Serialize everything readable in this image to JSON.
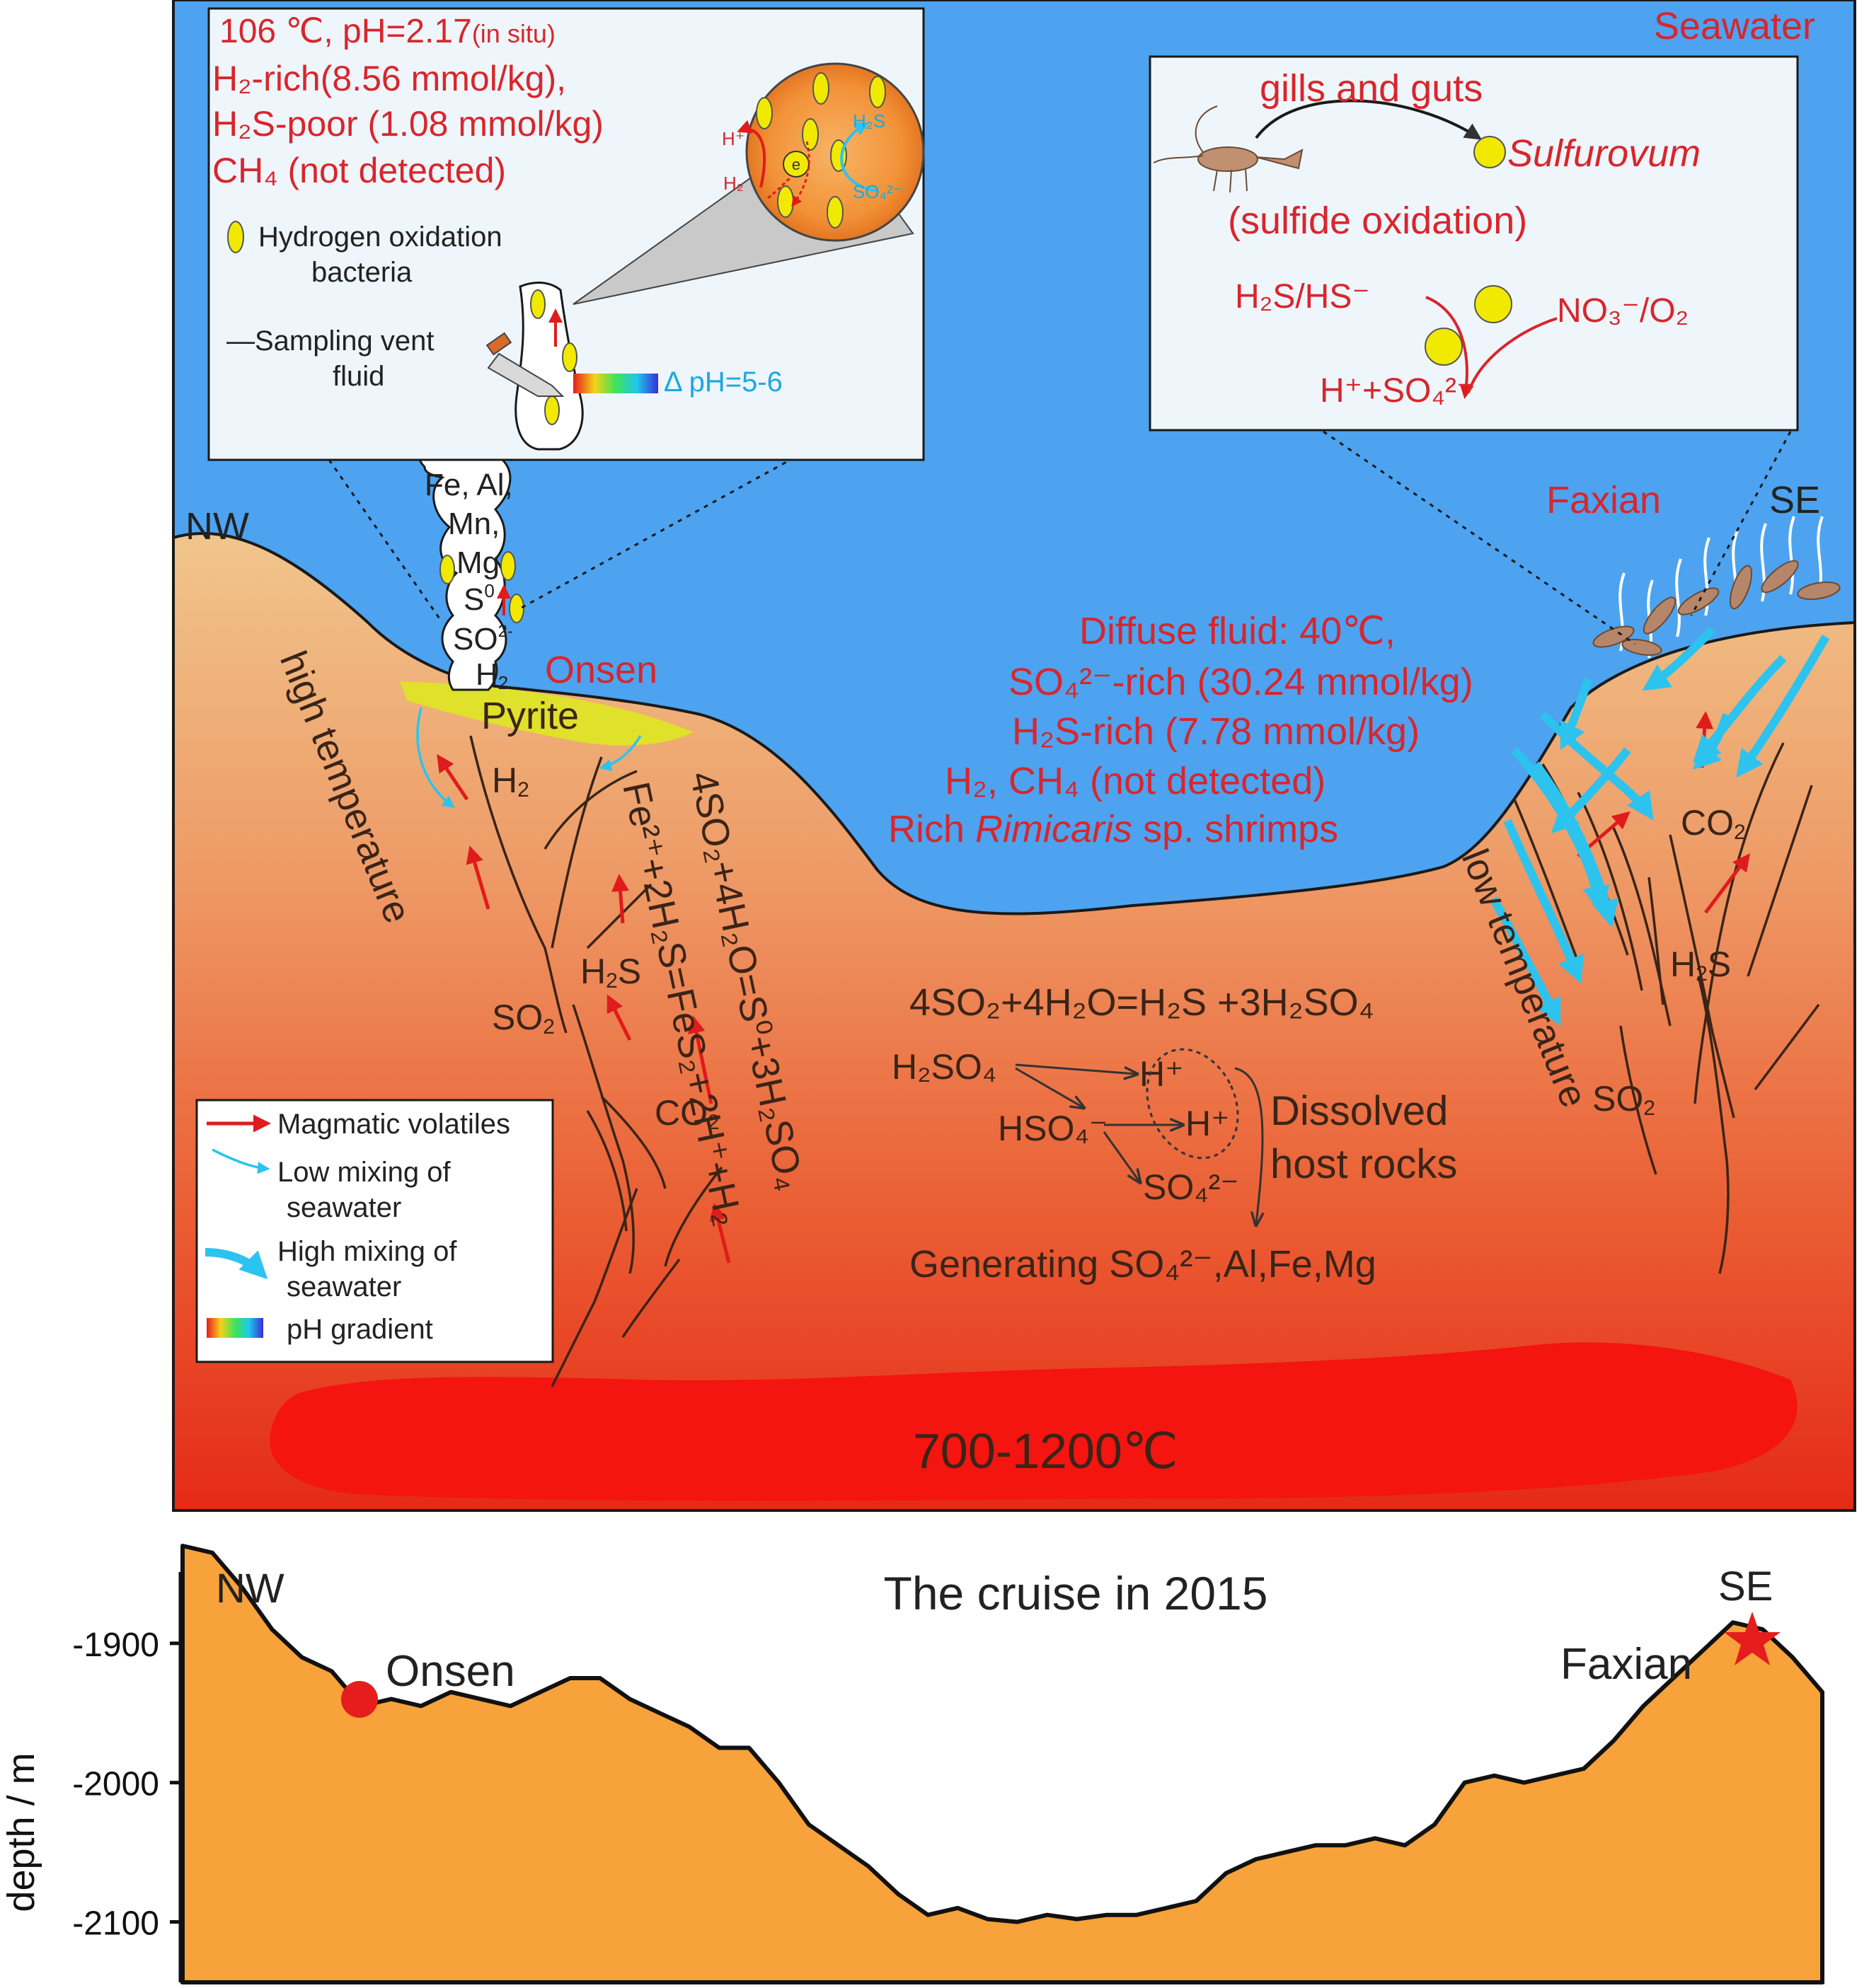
{
  "colors": {
    "seawater": "#4da3ef",
    "crust_top": "#f0c188",
    "crust_bottom": "#e8321e",
    "magma": "#f21616",
    "pyrite": "#dfe12a",
    "red_text": "#d8262c",
    "cyan_text": "#1ba9e0",
    "arrow_red": "#e01b1b",
    "arrow_cyan": "#2cc3ef",
    "bacteria": "#f1ea00",
    "profile_fill": "#f7a23a",
    "box_bg": "#eef6fc"
  },
  "labels": {
    "seawater": "Seawater",
    "nw": "NW",
    "se": "SE",
    "faxian": "Faxian",
    "onsen": "Onsen",
    "pyrite": "Pyrite",
    "high_temp": "high temperature",
    "low_temp": "low temperature",
    "magma": "700-1200℃",
    "chimney": [
      "Fe, Al,",
      "Mn,",
      "Mg",
      "S",
      "SO",
      "H"
    ],
    "chimney_sup": [
      "0",
      "2-",
      "2"
    ],
    "gas": {
      "h2": "H",
      "h2s": "H",
      "so2": "SO",
      "co2": "CO",
      "co2_se": "CO",
      "h2s_se": "H",
      "so2_se": "SO"
    },
    "eq_vertical_1": "4SO₂+4H₂O=S⁰+3H₂SO₄",
    "eq_vertical_2": "Fe²⁺+2H₂S=FeS₂+2H⁺+H₂",
    "eq_center": "4SO₂+4H₂O=H₂S +3H₂SO₄",
    "h2so4": "H₂SO₄",
    "hso4": "HSO₄⁻",
    "h_plus": "H⁺",
    "so4": "SO₄²⁻",
    "dissolved": [
      "Dissolved",
      "host rocks"
    ],
    "generating": "Generating  SO₄²⁻,Al,Fe,Mg"
  },
  "onsen_box": {
    "line1": "106 ℃, pH=2.17",
    "line1_small": "(in situ)",
    "line2": "H₂-rich(8.56 mmol/kg),",
    "line3": "H₂S-poor (1.08 mmol/kg)",
    "line4": "CH₄ (not detected)",
    "bacteria_label": [
      "Hydrogen oxidation",
      "bacteria"
    ],
    "sampling_label": [
      "—Sampling vent",
      "fluid"
    ],
    "ph_label": "Δ pH=5-6",
    "cell": {
      "h_plus": "H⁺",
      "h2": "H₂",
      "e": "e",
      "h2s": "H₂S",
      "so4": "SO₄²⁻"
    }
  },
  "faxian_box": {
    "gills": "gills and guts",
    "sulfurovum": "Sulfurovum",
    "sulfide_ox": "(sulfide oxidation)",
    "h2s_hs": "H₂S/HS⁻",
    "no3_o2": "NO₃⁻/O₂",
    "product": "H⁺+SO₄²⁻"
  },
  "diffuse": {
    "line1": "Diffuse fluid: 40℃,",
    "line2": "SO₄²⁻-rich (30.24 mmol/kg)",
    "line3": "H₂S-rich (7.78 mmol/kg)",
    "line4": "H₂, CH₄ (not detected)",
    "line5a": "Rich ",
    "line5b": "Rimicaris",
    "line5c": " sp. shrimps"
  },
  "legend": {
    "items": [
      "Magmatic volatiles",
      "Low mixing of",
      "seawater",
      "High mixing of",
      "seawater",
      "pH gradient"
    ]
  },
  "profile": {
    "title": "The cruise in 2015",
    "ylabel": "depth / m",
    "nw": "NW",
    "se": "SE",
    "onsen": "Onsen",
    "faxian": "Faxian",
    "ticks": [
      "-1900",
      "-2000",
      "-2100"
    ],
    "tick_values": [
      -1900,
      -2000,
      -2100
    ],
    "ylim": [
      -2150,
      -1830
    ],
    "depth_profile": [
      -1830,
      -1835,
      -1860,
      -1890,
      -1910,
      -1920,
      -1945,
      -1940,
      -1945,
      -1935,
      -1940,
      -1945,
      -1935,
      -1925,
      -1925,
      -1940,
      -1950,
      -1960,
      -1975,
      -1975,
      -2000,
      -2030,
      -2045,
      -2060,
      -2080,
      -2095,
      -2090,
      -2098,
      -2100,
      -2095,
      -2098,
      -2095,
      -2095,
      -2090,
      -2085,
      -2065,
      -2055,
      -2050,
      -2045,
      -2045,
      -2040,
      -2045,
      -2030,
      -2000,
      -1995,
      -2000,
      -1995,
      -1990,
      -1970,
      -1945,
      -1925,
      -1905,
      -1885,
      -1890,
      -1910,
      -1935
    ]
  }
}
